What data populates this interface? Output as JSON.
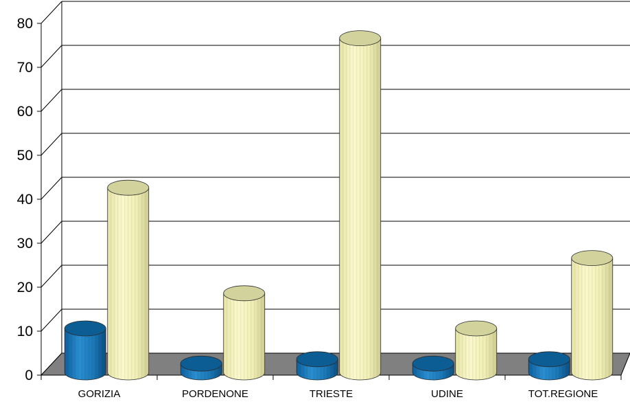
{
  "chart_data": {
    "type": "bar",
    "style": "3d-cylinder",
    "categories": [
      "GORIZIA",
      "PORDENONE",
      "TRIESTE",
      "UDINE",
      "TOT.REGIONE"
    ],
    "series": [
      {
        "values": [
          10,
          2,
          3,
          2,
          3
        ]
      },
      {
        "values": [
          42,
          18,
          76,
          10,
          26
        ]
      }
    ],
    "ylim": [
      0,
      80
    ],
    "yticks": [
      "0",
      "10",
      "20",
      "30",
      "40",
      "50",
      "60",
      "70",
      "80"
    ],
    "grid": true,
    "legend": "none",
    "colors": {
      "series1": "#1b78b7",
      "series1_top": "#0d5d95",
      "series2": "#f4f2b8",
      "series2_top": "#d2d29c",
      "floor": "#808080",
      "grid": "#000000"
    }
  }
}
